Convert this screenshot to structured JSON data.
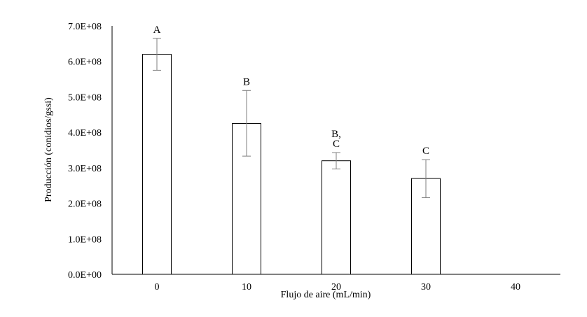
{
  "chart_data": {
    "type": "bar",
    "title": "",
    "xlabel": "Flujo de aire (mL/min)",
    "ylabel": "Producción (conidios/gssi)",
    "ylim": [
      0,
      700000000
    ],
    "yticks": [
      {
        "value": 0,
        "label": "0.0E+00"
      },
      {
        "value": 100000000,
        "label": "1.0E+08"
      },
      {
        "value": 200000000,
        "label": "2.0E+08"
      },
      {
        "value": 300000000,
        "label": "3.0E+08"
      },
      {
        "value": 400000000,
        "label": "4.0E+08"
      },
      {
        "value": 500000000,
        "label": "5.0E+08"
      },
      {
        "value": 600000000,
        "label": "6.0E+08"
      },
      {
        "value": 700000000,
        "label": "7.0E+08"
      }
    ],
    "categories": [
      "0",
      "10",
      "20",
      "30",
      "40"
    ],
    "values": [
      620000000,
      425000000,
      320000000,
      270000000,
      null
    ],
    "error_low": [
      575000000,
      333000000,
      297000000,
      216000000,
      null
    ],
    "error_high": [
      665000000,
      518000000,
      343000000,
      323000000,
      null
    ],
    "annotations": [
      "A",
      "B",
      "B,\nC",
      "C",
      ""
    ],
    "grid": false,
    "legend": "none",
    "colors": {
      "bar_fill": "#ffffff",
      "bar_stroke": "#000000",
      "error_bar": "#7f7f7f",
      "axis": "#000000"
    }
  }
}
